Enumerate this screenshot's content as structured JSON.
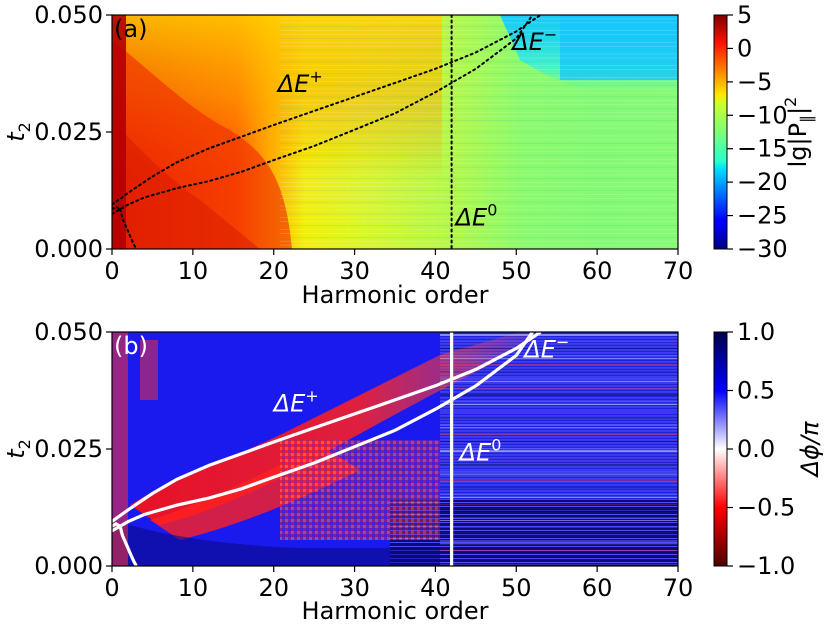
{
  "chart_data": [
    {
      "type": "heatmap",
      "panel_label": "(a)",
      "xlabel": "Harmonic order",
      "ylabel": "t",
      "ylabel_sub": "2",
      "xlim": [
        0,
        70
      ],
      "ylim": [
        0,
        0.05
      ],
      "xticks": [
        "0",
        "10",
        "20",
        "30",
        "40",
        "50",
        "60",
        "70"
      ],
      "yticks": [
        "0.000",
        "0.025",
        "0.050"
      ],
      "colorbar": {
        "label": "lg|P",
        "label_sub": "∥",
        "label_tail": "|",
        "label_sup": "2",
        "range": [
          -30,
          5
        ],
        "ticks": [
          "5",
          "0",
          "−5",
          "−10",
          "−15",
          "−20",
          "−25",
          "−30"
        ],
        "colormap": "jet"
      },
      "curve_style": "dotted-black",
      "annotations": [
        {
          "text": "ΔE",
          "sup": "+",
          "x": 20.5,
          "y": 0.0335
        },
        {
          "text": "ΔE",
          "sup": "−",
          "x": 49.5,
          "y": 0.0425
        },
        {
          "text": "ΔE",
          "sup": "0",
          "x": 42.5,
          "y": 0.005
        }
      ]
    },
    {
      "type": "heatmap",
      "panel_label": "(b)",
      "xlabel": "Harmonic order",
      "ylabel": "t",
      "ylabel_sub": "2",
      "xlim": [
        0,
        70
      ],
      "ylim": [
        0,
        0.05
      ],
      "xticks": [
        "0",
        "10",
        "20",
        "30",
        "40",
        "50",
        "60",
        "70"
      ],
      "yticks": [
        "0.000",
        "0.025",
        "0.050"
      ],
      "colorbar": {
        "label": "Δϕ/π",
        "range": [
          -1,
          1
        ],
        "ticks": [
          "1.0",
          "0.5",
          "0.0",
          "−0.5",
          "−1.0"
        ],
        "colormap": "seismic"
      },
      "curve_style": "solid-white",
      "annotations": [
        {
          "text": "ΔE",
          "sup": "+",
          "x": 20,
          "y": 0.033
        },
        {
          "text": "ΔE",
          "sup": "−",
          "x": 51,
          "y": 0.0445
        },
        {
          "text": "ΔE",
          "sup": "0",
          "x": 43,
          "y": 0.0225
        }
      ]
    }
  ],
  "curves": {
    "delta_e_plus": {
      "x": [
        0,
        2,
        5,
        8,
        12,
        16,
        20,
        25,
        30,
        35,
        40,
        45,
        50,
        53
      ],
      "y": [
        0.0095,
        0.012,
        0.0155,
        0.0185,
        0.0215,
        0.024,
        0.0265,
        0.0295,
        0.0325,
        0.0355,
        0.0385,
        0.042,
        0.0465,
        0.05
      ]
    },
    "delta_e_minus": {
      "x": [
        0,
        2,
        4,
        8,
        12,
        16,
        20,
        25,
        30,
        35,
        40,
        45,
        50,
        52
      ],
      "y": [
        0.0075,
        0.0095,
        0.011,
        0.013,
        0.0145,
        0.0165,
        0.019,
        0.022,
        0.0255,
        0.029,
        0.0335,
        0.0385,
        0.045,
        0.05
      ]
    },
    "branch": {
      "x": [
        1.0,
        1.3,
        1.8,
        2.3,
        2.7,
        3.0
      ],
      "y": [
        0.0085,
        0.0065,
        0.0045,
        0.0025,
        0.001,
        0.0
      ]
    },
    "branch2": {
      "x": [
        0.0,
        0.5,
        1.0
      ],
      "y": [
        0.0085,
        0.009,
        0.0085
      ]
    },
    "delta_e_zero_x": 42
  }
}
